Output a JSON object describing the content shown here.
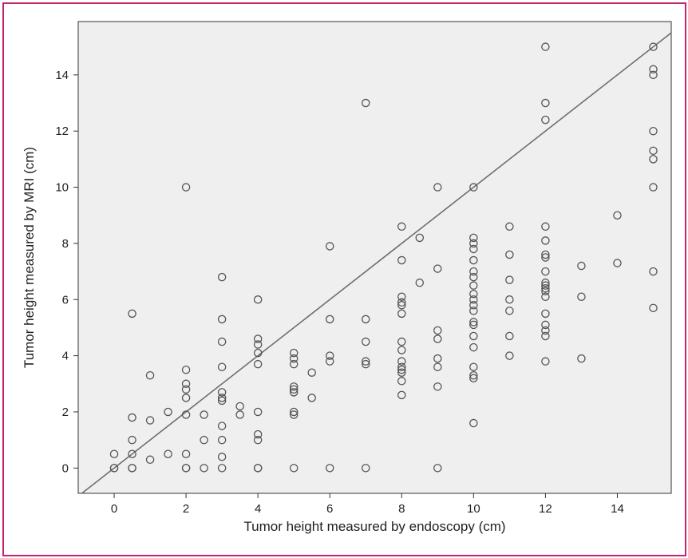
{
  "colors": {
    "border": "#c0266d",
    "plot_background": "#efefef",
    "marker_stroke": "#555555",
    "reference_line": "#6e6e6e"
  },
  "chart_data": {
    "type": "scatter",
    "title": "",
    "xlabel": "Tumor height measured by endoscopy (cm)",
    "ylabel": "Tumor height measured by MRI (cm)",
    "xlim": [
      -1,
      15.5
    ],
    "ylim": [
      -0.9,
      15.9
    ],
    "xticks": [
      0,
      2,
      4,
      6,
      8,
      10,
      12,
      14
    ],
    "yticks": [
      0,
      2,
      4,
      6,
      8,
      10,
      12,
      14
    ],
    "xtick_labels": [
      "0",
      "2",
      "4",
      "6",
      "8",
      "10",
      "12",
      "14"
    ],
    "ytick_labels": [
      "0",
      "2",
      "4",
      "6",
      "8",
      "10",
      "12",
      "14"
    ],
    "grid": false,
    "reference_line": {
      "type": "identity",
      "from": [
        -1,
        -1
      ],
      "to": [
        15.9,
        15.9
      ]
    },
    "marker": "open-circle",
    "points": [
      [
        0,
        0.5
      ],
      [
        0,
        0
      ],
      [
        0,
        0
      ],
      [
        0.5,
        5.5
      ],
      [
        0.5,
        1.8
      ],
      [
        0.5,
        1
      ],
      [
        0.5,
        0.5
      ],
      [
        0.5,
        0
      ],
      [
        0.5,
        0
      ],
      [
        1,
        3.3
      ],
      [
        1,
        1.7
      ],
      [
        1,
        0.3
      ],
      [
        1.5,
        2
      ],
      [
        1.5,
        0.5
      ],
      [
        2,
        10
      ],
      [
        2,
        3.5
      ],
      [
        2,
        3
      ],
      [
        2,
        2.8
      ],
      [
        2,
        2.5
      ],
      [
        2,
        1.9
      ],
      [
        2,
        0.5
      ],
      [
        2,
        0
      ],
      [
        2,
        0
      ],
      [
        2.5,
        1.9
      ],
      [
        2.5,
        1
      ],
      [
        2.5,
        0
      ],
      [
        3,
        6.8
      ],
      [
        3,
        5.3
      ],
      [
        3,
        4.5
      ],
      [
        3,
        3.6
      ],
      [
        3,
        2.7
      ],
      [
        3,
        2.5
      ],
      [
        3,
        2.4
      ],
      [
        3,
        1.5
      ],
      [
        3,
        1
      ],
      [
        3,
        0.4
      ],
      [
        3,
        0
      ],
      [
        3.5,
        2.2
      ],
      [
        3.5,
        1.9
      ],
      [
        4,
        6
      ],
      [
        4,
        4.6
      ],
      [
        4,
        4.4
      ],
      [
        4,
        4.1
      ],
      [
        4,
        3.7
      ],
      [
        4,
        2
      ],
      [
        4,
        1.2
      ],
      [
        4,
        1
      ],
      [
        4,
        0
      ],
      [
        4,
        0
      ],
      [
        5,
        4.1
      ],
      [
        5,
        3.9
      ],
      [
        5,
        3.7
      ],
      [
        5,
        2.9
      ],
      [
        5,
        2.8
      ],
      [
        5,
        2.7
      ],
      [
        5,
        2
      ],
      [
        5,
        1.9
      ],
      [
        5,
        0
      ],
      [
        5.5,
        3.4
      ],
      [
        5.5,
        2.5
      ],
      [
        6,
        7.9
      ],
      [
        6,
        5.3
      ],
      [
        6,
        4
      ],
      [
        6,
        3.8
      ],
      [
        6,
        0
      ],
      [
        7,
        13
      ],
      [
        7,
        5.3
      ],
      [
        7,
        4.5
      ],
      [
        7,
        3.8
      ],
      [
        7,
        3.7
      ],
      [
        7,
        0
      ],
      [
        8,
        8.6
      ],
      [
        8,
        7.4
      ],
      [
        8,
        6.1
      ],
      [
        8,
        5.9
      ],
      [
        8,
        5.8
      ],
      [
        8,
        5.5
      ],
      [
        8,
        4.5
      ],
      [
        8,
        4.2
      ],
      [
        8,
        3.8
      ],
      [
        8,
        3.6
      ],
      [
        8,
        3.5
      ],
      [
        8,
        3.4
      ],
      [
        8,
        3.1
      ],
      [
        8,
        2.6
      ],
      [
        8.5,
        8.2
      ],
      [
        8.5,
        6.6
      ],
      [
        9,
        10
      ],
      [
        9,
        7.1
      ],
      [
        9,
        4.9
      ],
      [
        9,
        4.6
      ],
      [
        9,
        3.9
      ],
      [
        9,
        3.6
      ],
      [
        9,
        2.9
      ],
      [
        9,
        0
      ],
      [
        10,
        10
      ],
      [
        10,
        8.2
      ],
      [
        10,
        8
      ],
      [
        10,
        7.8
      ],
      [
        10,
        7.4
      ],
      [
        10,
        7
      ],
      [
        10,
        6.8
      ],
      [
        10,
        6.5
      ],
      [
        10,
        6.2
      ],
      [
        10,
        6
      ],
      [
        10,
        5.8
      ],
      [
        10,
        5.6
      ],
      [
        10,
        5.2
      ],
      [
        10,
        5.1
      ],
      [
        10,
        4.7
      ],
      [
        10,
        4.3
      ],
      [
        10,
        3.6
      ],
      [
        10,
        3.3
      ],
      [
        10,
        3.2
      ],
      [
        10,
        1.6
      ],
      [
        11,
        8.6
      ],
      [
        11,
        7.6
      ],
      [
        11,
        6.7
      ],
      [
        11,
        6
      ],
      [
        11,
        5.6
      ],
      [
        11,
        4.7
      ],
      [
        11,
        4
      ],
      [
        12,
        15
      ],
      [
        12,
        13
      ],
      [
        12,
        12.4
      ],
      [
        12,
        8.6
      ],
      [
        12,
        8.1
      ],
      [
        12,
        7.6
      ],
      [
        12,
        7.5
      ],
      [
        12,
        7
      ],
      [
        12,
        6.6
      ],
      [
        12,
        6.5
      ],
      [
        12,
        6.4
      ],
      [
        12,
        6.3
      ],
      [
        12,
        6.1
      ],
      [
        12,
        5.5
      ],
      [
        12,
        5.1
      ],
      [
        12,
        4.9
      ],
      [
        12,
        4.7
      ],
      [
        12,
        3.8
      ],
      [
        13,
        7.2
      ],
      [
        13,
        6.1
      ],
      [
        13,
        3.9
      ],
      [
        14,
        9
      ],
      [
        14,
        7.3
      ],
      [
        15,
        15
      ],
      [
        15,
        14.2
      ],
      [
        15,
        14
      ],
      [
        15,
        12
      ],
      [
        15,
        11.3
      ],
      [
        15,
        11
      ],
      [
        15,
        10
      ],
      [
        15,
        7
      ],
      [
        15,
        5.7
      ]
    ]
  }
}
